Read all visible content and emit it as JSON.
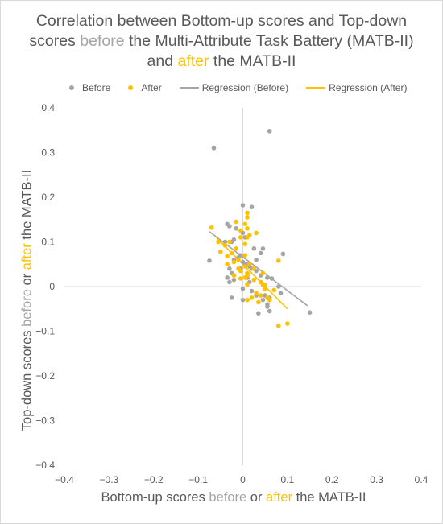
{
  "chart_data": {
    "type": "scatter",
    "title": {
      "part1": "Correlation between Bottom-up scores and Top-down scores ",
      "before_word": "before",
      "part2": " the Multi-Attribute Task Battery (MATB-II) and ",
      "after_word": "after",
      "part3": " the MATB-II"
    },
    "xlabel": {
      "part1": "Bottom-up scores ",
      "before_word": "before",
      "part2": " or ",
      "after_word": "after",
      "part3": " the MATB-II"
    },
    "ylabel": {
      "part1": "Top-down scores ",
      "before_word": "before",
      "part2": " or ",
      "after_word": "after",
      "part3": " the MATB-II"
    },
    "xlim": [
      -0.4,
      0.4
    ],
    "ylim": [
      -0.4,
      0.4
    ],
    "x_ticks": [
      "−0.4",
      "−0.3",
      "−0.2",
      "−0.1",
      "0",
      "0.1",
      "0.2",
      "0.3",
      "0.4"
    ],
    "y_ticks": [
      "0.4",
      "0.3",
      "0.2",
      "0.1",
      "0",
      "−0.1",
      "−0.2",
      "−0.3",
      "−0.4"
    ],
    "grid": false,
    "legend_position": "top",
    "colors": {
      "before": "#a5a5a5",
      "after": "#ffc000",
      "text": "#595959",
      "axis": "#d9d9d9"
    },
    "series": [
      {
        "name": "Before",
        "color": "#a5a5a5",
        "points": [
          [
            -0.065,
            0.31
          ],
          [
            0.06,
            0.348
          ],
          [
            0.0,
            0.182
          ],
          [
            0.02,
            0.178
          ],
          [
            -0.035,
            0.14
          ],
          [
            -0.03,
            0.135
          ],
          [
            -0.015,
            0.13
          ],
          [
            0.0,
            0.12
          ],
          [
            0.005,
            0.11
          ],
          [
            -0.02,
            0.105
          ],
          [
            -0.025,
            0.1
          ],
          [
            -0.04,
            0.1
          ],
          [
            0.045,
            0.085
          ],
          [
            0.025,
            0.085
          ],
          [
            0.04,
            0.075
          ],
          [
            0.09,
            0.073
          ],
          [
            -0.005,
            0.07
          ],
          [
            -0.01,
            0.065
          ],
          [
            -0.02,
            0.06
          ],
          [
            0.03,
            0.06
          ],
          [
            -0.075,
            0.058
          ],
          [
            0.0,
            0.055
          ],
          [
            0.005,
            0.05
          ],
          [
            0.01,
            0.05
          ],
          [
            0.015,
            0.045
          ],
          [
            -0.005,
            0.04
          ],
          [
            0.02,
            0.04
          ],
          [
            0.03,
            0.035
          ],
          [
            -0.03,
            0.04
          ],
          [
            -0.025,
            0.03
          ],
          [
            0.04,
            0.025
          ],
          [
            -0.035,
            0.02
          ],
          [
            0.055,
            0.02
          ],
          [
            0.065,
            0.018
          ],
          [
            0.01,
            0.02
          ],
          [
            -0.02,
            0.015
          ],
          [
            0.015,
            0.01
          ],
          [
            -0.03,
            0.01
          ],
          [
            0.045,
            0.005
          ],
          [
            0.08,
            0.0
          ],
          [
            0.0,
            -0.005
          ],
          [
            0.02,
            -0.01
          ],
          [
            0.05,
            -0.02
          ],
          [
            0.03,
            -0.02
          ],
          [
            0.06,
            -0.025
          ],
          [
            -0.025,
            -0.025
          ],
          [
            0.0,
            -0.03
          ],
          [
            0.055,
            -0.04
          ],
          [
            0.055,
            -0.045
          ],
          [
            0.06,
            -0.055
          ],
          [
            0.085,
            -0.015
          ],
          [
            0.045,
            -0.03
          ],
          [
            0.035,
            -0.06
          ],
          [
            0.15,
            -0.058
          ]
        ],
        "regression": [
          [
            -0.075,
            0.123
          ],
          [
            0.145,
            -0.043
          ]
        ]
      },
      {
        "name": "After",
        "color": "#ffc000",
        "points": [
          [
            0.01,
            0.165
          ],
          [
            0.01,
            0.155
          ],
          [
            -0.015,
            0.145
          ],
          [
            0.005,
            0.14
          ],
          [
            -0.07,
            0.132
          ],
          [
            0.01,
            0.13
          ],
          [
            -0.005,
            0.125
          ],
          [
            0.03,
            0.12
          ],
          [
            0.015,
            0.115
          ],
          [
            -0.005,
            0.11
          ],
          [
            0.01,
            0.11
          ],
          [
            -0.03,
            0.1
          ],
          [
            0.005,
            0.095
          ],
          [
            -0.04,
            0.092
          ],
          [
            -0.055,
            0.1
          ],
          [
            -0.015,
            0.085
          ],
          [
            -0.05,
            0.078
          ],
          [
            -0.025,
            0.075
          ],
          [
            -0.035,
            0.068
          ],
          [
            0.005,
            0.07
          ],
          [
            -0.01,
            0.06
          ],
          [
            0.08,
            0.058
          ],
          [
            -0.02,
            0.055
          ],
          [
            -0.035,
            0.05
          ],
          [
            0.015,
            0.05
          ],
          [
            0.005,
            0.045
          ],
          [
            -0.01,
            0.04
          ],
          [
            0.025,
            0.04
          ],
          [
            -0.005,
            0.035
          ],
          [
            0.01,
            0.03
          ],
          [
            0.045,
            0.03
          ],
          [
            -0.02,
            0.025
          ],
          [
            0.01,
            0.025
          ],
          [
            0.005,
            0.02
          ],
          [
            -0.005,
            0.018
          ],
          [
            0.025,
            0.015
          ],
          [
            0.04,
            0.01
          ],
          [
            0.01,
            0.005
          ],
          [
            0.045,
            0.005
          ],
          [
            0.05,
            0.003
          ],
          [
            0.05,
            -0.005
          ],
          [
            0.07,
            -0.008
          ],
          [
            0.03,
            -0.015
          ],
          [
            0.04,
            -0.02
          ],
          [
            0.02,
            -0.025
          ],
          [
            0.01,
            -0.03
          ],
          [
            0.055,
            -0.025
          ],
          [
            0.06,
            -0.03
          ],
          [
            0.035,
            -0.035
          ],
          [
            0.08,
            -0.088
          ],
          [
            0.1,
            -0.083
          ]
        ],
        "regression": [
          [
            -0.06,
            0.11
          ],
          [
            0.1,
            -0.05
          ]
        ]
      }
    ],
    "legend": [
      {
        "label": "Before",
        "kind": "marker",
        "color": "#a5a5a5"
      },
      {
        "label": "After",
        "kind": "marker",
        "color": "#ffc000"
      },
      {
        "label": "Regression (Before)",
        "kind": "line",
        "color": "#a5a5a5"
      },
      {
        "label": "Regression (After)",
        "kind": "line",
        "color": "#ffc000"
      }
    ]
  }
}
